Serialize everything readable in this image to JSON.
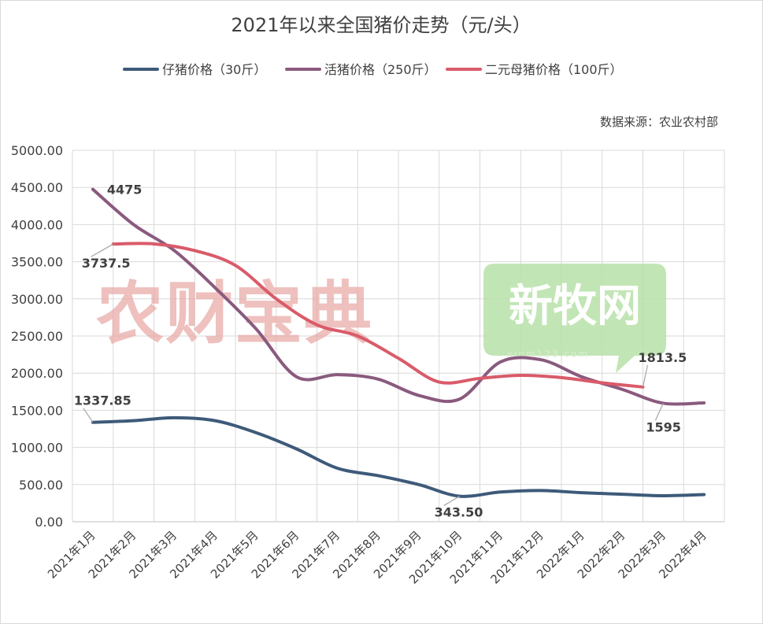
{
  "chart_data": {
    "type": "line",
    "title": "2021年以来全国猪价走势（元/头）",
    "source_note": "数据来源：农业农村部",
    "categories": [
      "2021年1月",
      "2021年2月",
      "2021年3月",
      "2021年4月",
      "2021年5月",
      "2021年6月",
      "2021年7月",
      "2021年8月",
      "2021年9月",
      "2021年10月",
      "2021年11月",
      "2021年12月",
      "2022年1月",
      "2022年2月",
      "2022年3月",
      "2022年4月"
    ],
    "ylim": [
      0,
      5000
    ],
    "yticks": [
      "0.00",
      "500.00",
      "1000.00",
      "1500.00",
      "2000.00",
      "2500.00",
      "3000.00",
      "3500.00",
      "4000.00",
      "4500.00",
      "5000.00"
    ],
    "grid": true,
    "legend_position": "top",
    "series": [
      {
        "name": "仔猪价格（30斤）",
        "color": "#3e5a7a",
        "x": [
          0,
          1,
          2,
          3,
          4,
          5,
          6,
          7,
          8,
          9,
          10,
          11,
          12,
          13,
          14,
          15
        ],
        "values": [
          1337.85,
          1360,
          1400,
          1360,
          1200,
          980,
          720,
          620,
          500,
          343.5,
          400,
          420,
          390,
          370,
          350,
          365
        ]
      },
      {
        "name": "活猪价格（250斤）",
        "color": "#8a5a7e",
        "x": [
          0,
          1,
          2,
          3,
          4,
          5,
          6,
          7,
          8,
          9,
          10,
          11,
          12,
          13,
          14,
          15
        ],
        "values": [
          4475,
          4000,
          3650,
          3150,
          2600,
          1950,
          1980,
          1920,
          1700,
          1650,
          2150,
          2180,
          1950,
          1780,
          1595,
          1600
        ]
      },
      {
        "name": "二元母猪价格（100斤）",
        "color": "#d95b6a",
        "x": [
          0.5,
          1.5,
          2.5,
          3.5,
          4.5,
          5.5,
          6.5,
          7.5,
          8.5,
          9.5,
          10.5,
          11.5,
          12.5,
          13.5
        ],
        "values": [
          3737.5,
          3740,
          3650,
          3450,
          3000,
          2650,
          2500,
          2200,
          1880,
          1930,
          1970,
          1940,
          1870,
          1813.5
        ]
      }
    ],
    "data_labels": [
      "4475",
      "3737.5",
      "1337.85",
      "343.50",
      "1813.5",
      "1595"
    ],
    "watermark_a": "农财宝典",
    "watermark_b": "新牧网",
    "watermark_b_url": "xinm123.com"
  }
}
